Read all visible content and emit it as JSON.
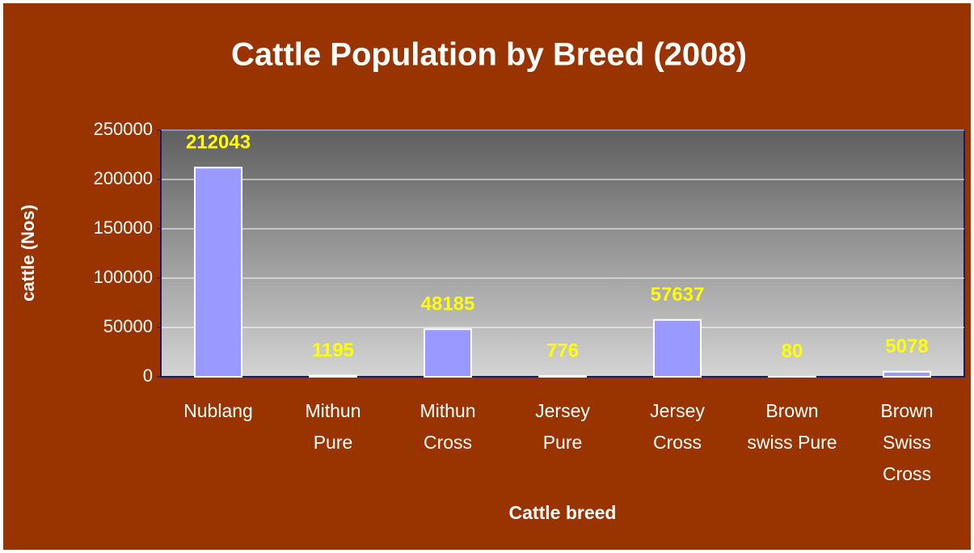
{
  "chart_data": {
    "type": "bar",
    "title": "Cattle Population by Breed (2008)",
    "x_label": "Cattle breed",
    "y_label": "cattle (Nos)",
    "categories": [
      "Nublang",
      "Mithun Pure",
      "Mithun Cross",
      "Jersey Pure",
      "Jersey Cross",
      "Brown swiss Pure",
      "Brown Swiss Cross"
    ],
    "values": [
      212043,
      1195,
      48185,
      776,
      57637,
      80,
      5078
    ],
    "color": "#9999ff",
    "ylim": [
      0,
      250000
    ],
    "yticks": [
      0,
      50000,
      100000,
      150000,
      200000,
      250000
    ],
    "grid": true
  }
}
